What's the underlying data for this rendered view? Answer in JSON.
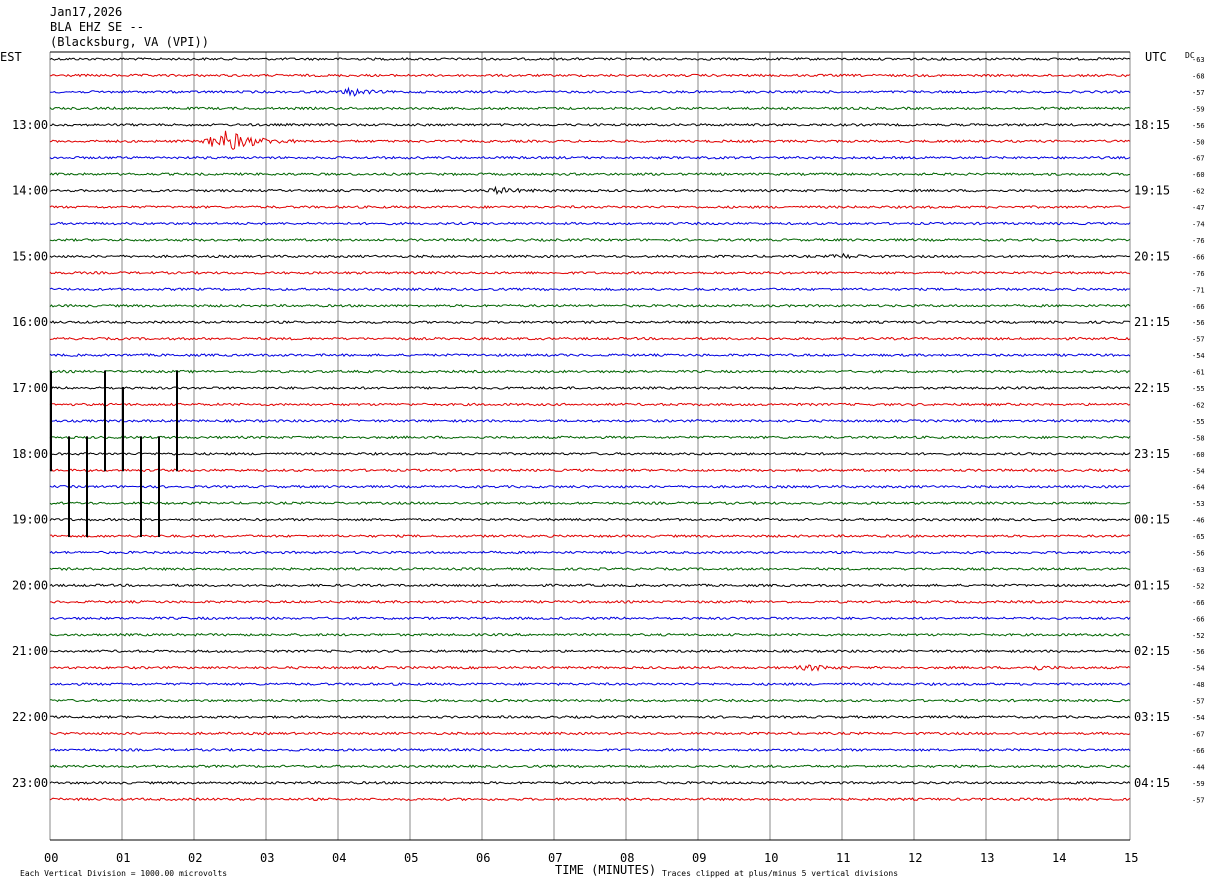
{
  "header": {
    "date": "Jan17,2026",
    "station": "BLA EHZ SE --",
    "location": "(Blacksburg, VA (VPI))"
  },
  "chart_data": {
    "type": "line",
    "title": "",
    "left_axis_label": "EST",
    "right_axis_label": "UTC",
    "dc_label": "DC",
    "xlabel": "TIME (MINUTES)",
    "x_ticks": [
      "00",
      "01",
      "02",
      "03",
      "04",
      "05",
      "06",
      "07",
      "08",
      "09",
      "10",
      "11",
      "12",
      "13",
      "14",
      "15"
    ],
    "xlim": [
      0,
      15
    ],
    "left_hour_labels": [
      "13:00",
      "14:00",
      "15:00",
      "16:00",
      "17:00",
      "18:00",
      "19:00",
      "20:00",
      "21:00",
      "22:00",
      "23:00"
    ],
    "right_hour_labels": [
      "18:15",
      "19:15",
      "20:15",
      "21:15",
      "22:15",
      "23:15",
      "00:15",
      "01:15",
      "02:15",
      "03:15",
      "04:15"
    ],
    "hour_label_first_trace": 4,
    "traces_per_hour": 4,
    "trace_colors": [
      "#000000",
      "#e00000",
      "#0000e0",
      "#006400"
    ],
    "dc_offsets": [
      -63,
      -68,
      -57,
      -59,
      -56,
      -50,
      -67,
      -60,
      -62,
      -47,
      -74,
      -76,
      -66,
      -76,
      -71,
      -66,
      -56,
      -57,
      -54,
      -61,
      -55,
      -62,
      -55,
      -58,
      -60,
      -54,
      -64,
      -53,
      -46,
      -65,
      -56,
      -63,
      -52,
      -66,
      -66,
      -52,
      -56,
      -54,
      -48,
      -57,
      -54,
      -67,
      -66,
      -44,
      -59,
      -57
    ],
    "events": [
      {
        "trace": 5,
        "start_min": 2.1,
        "peak_min": 2.45,
        "end_min": 3.4,
        "amplitude": 3.2
      },
      {
        "trace": 2,
        "start_min": 4.0,
        "peak_min": 4.2,
        "end_min": 4.7,
        "amplitude": 1.1
      },
      {
        "trace": 8,
        "start_min": 6.0,
        "peak_min": 6.2,
        "end_min": 7.0,
        "amplitude": 0.8
      },
      {
        "trace": 12,
        "start_min": 10.8,
        "peak_min": 11.0,
        "end_min": 11.6,
        "amplitude": 0.6
      },
      {
        "trace": 37,
        "start_min": 10.3,
        "peak_min": 10.6,
        "end_min": 11.2,
        "amplitude": 0.7
      },
      {
        "trace": 37,
        "start_min": 13.5,
        "peak_min": 13.7,
        "end_min": 14.2,
        "amplitude": 0.6
      }
    ],
    "clipped_spikes": [
      {
        "minute": 0.0,
        "from_trace": 19,
        "to_trace": 25
      },
      {
        "minute": 0.25,
        "from_trace": 23,
        "to_trace": 29
      },
      {
        "minute": 0.5,
        "from_trace": 23,
        "to_trace": 29
      },
      {
        "minute": 0.75,
        "from_trace": 19,
        "to_trace": 25
      },
      {
        "minute": 1.0,
        "from_trace": 20,
        "to_trace": 25
      },
      {
        "minute": 1.25,
        "from_trace": 23,
        "to_trace": 29
      },
      {
        "minute": 1.5,
        "from_trace": 23,
        "to_trace": 29
      },
      {
        "minute": 1.75,
        "from_trace": 19,
        "to_trace": 25
      }
    ],
    "noise_amplitude": 0.35,
    "grid": true
  },
  "footer": {
    "scale_note": "Each Vertical Division = 1000.00 microvolts",
    "clip_note": "Traces clipped at plus/minus 5 vertical divisions"
  }
}
